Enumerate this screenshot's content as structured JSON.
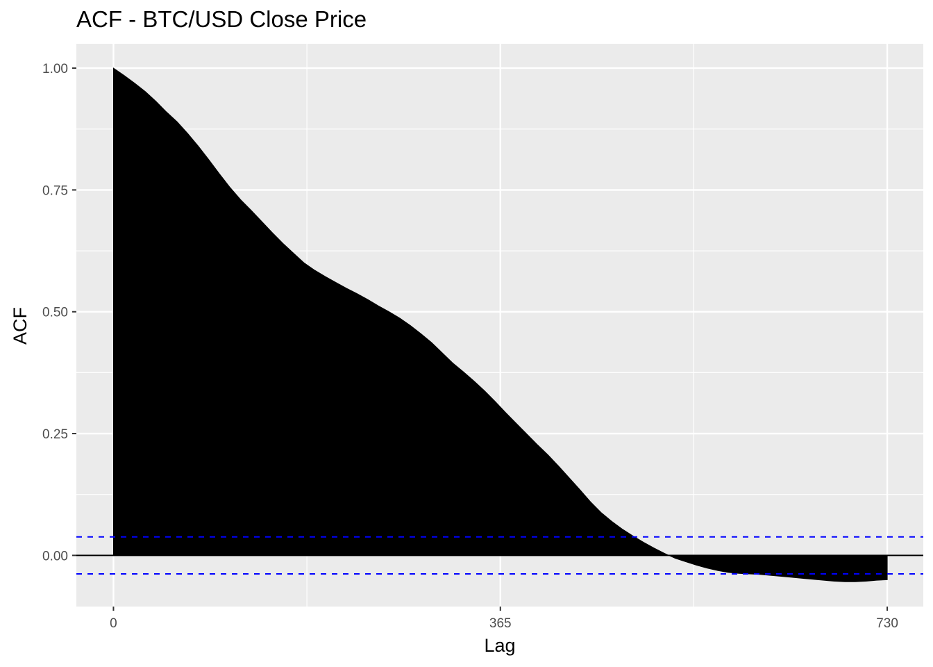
{
  "chart_data": {
    "type": "area",
    "title": "ACF - BTC/USD Close Price",
    "xlabel": "Lag",
    "ylabel": "ACF",
    "xlim": [
      -35,
      764
    ],
    "ylim": [
      -0.105,
      1.05
    ],
    "x_ticks": [
      {
        "value": 0,
        "label": "0"
      },
      {
        "value": 365,
        "label": "365"
      },
      {
        "value": 730,
        "label": "730"
      }
    ],
    "y_ticks": [
      {
        "value": 0,
        "label": "0.00"
      },
      {
        "value": 0.25,
        "label": "0.25"
      },
      {
        "value": 0.5,
        "label": "0.50"
      },
      {
        "value": 0.75,
        "label": "0.75"
      },
      {
        "value": 1,
        "label": "1.00"
      }
    ],
    "grid": true,
    "background": "#ebebeb",
    "grid_color": "#ffffff",
    "fill_color": "#000000",
    "zero_line_color": "#000000",
    "confidence_color": "#0000ff",
    "confidence_bounds": [
      0.038,
      -0.038
    ],
    "series": [
      {
        "x": [
          0,
          10,
          20,
          30,
          40,
          50,
          60,
          70,
          80,
          90,
          100,
          110,
          120,
          130,
          140,
          150,
          160,
          170,
          180,
          190,
          200,
          210,
          220,
          230,
          240,
          250,
          260,
          270,
          280,
          290,
          300,
          310,
          320,
          330,
          340,
          350,
          360,
          370,
          380,
          390,
          400,
          410,
          420,
          430,
          440,
          450,
          460,
          470,
          480,
          490,
          500,
          510,
          520,
          530,
          540,
          550,
          560,
          570,
          580,
          590,
          600,
          610,
          620,
          630,
          640,
          650,
          660,
          670,
          680,
          690,
          700,
          710,
          720,
          730
        ],
        "values": [
          1.0,
          0.985,
          0.969,
          0.952,
          0.932,
          0.91,
          0.89,
          0.866,
          0.84,
          0.812,
          0.783,
          0.755,
          0.73,
          0.708,
          0.685,
          0.662,
          0.64,
          0.62,
          0.6,
          0.585,
          0.572,
          0.56,
          0.548,
          0.537,
          0.525,
          0.512,
          0.5,
          0.487,
          0.472,
          0.455,
          0.437,
          0.416,
          0.395,
          0.377,
          0.358,
          0.338,
          0.316,
          0.293,
          0.271,
          0.249,
          0.227,
          0.206,
          0.183,
          0.159,
          0.135,
          0.11,
          0.088,
          0.07,
          0.054,
          0.04,
          0.027,
          0.015,
          0.004,
          -0.006,
          -0.013,
          -0.02,
          -0.026,
          -0.031,
          -0.035,
          -0.037,
          -0.038,
          -0.039,
          -0.041,
          -0.043,
          -0.045,
          -0.047,
          -0.049,
          -0.051,
          -0.053,
          -0.054,
          -0.054,
          -0.053,
          -0.051,
          -0.05
        ]
      }
    ]
  }
}
